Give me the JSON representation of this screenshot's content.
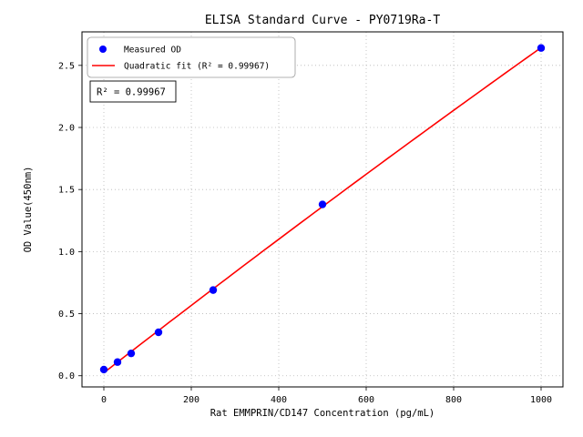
{
  "title": "ELISA Standard Curve - PY0719Ra-T",
  "annotation": "R² = 0.99967",
  "chart_data": {
    "type": "scatter",
    "title": "ELISA Standard Curve - PY0719Ra-T",
    "xlabel": "Rat EMMPRIN/CD147 Concentration (pg/mL)",
    "ylabel": "OD Value(450nm)",
    "x": [
      0,
      31.25,
      62.5,
      125,
      250,
      500,
      1000
    ],
    "y": [
      0.05,
      0.11,
      0.18,
      0.35,
      0.69,
      1.38,
      2.64
    ],
    "xticks": [
      0,
      200,
      400,
      600,
      800,
      1000
    ],
    "yticks": [
      0.0,
      0.5,
      1.0,
      1.5,
      2.0,
      2.5
    ],
    "xlim": [
      -50,
      1050
    ],
    "ylim": [
      -0.09,
      2.77
    ],
    "ytick_decimals": 1,
    "grid": true,
    "legend_position": "upper left",
    "r_squared": 0.99967,
    "series": [
      {
        "name": "Measured OD",
        "type": "scatter",
        "color": "#0000ff"
      },
      {
        "name": "Quadratic fit (R² = 0.99967)",
        "type": "line",
        "color": "#ff0000"
      }
    ]
  }
}
